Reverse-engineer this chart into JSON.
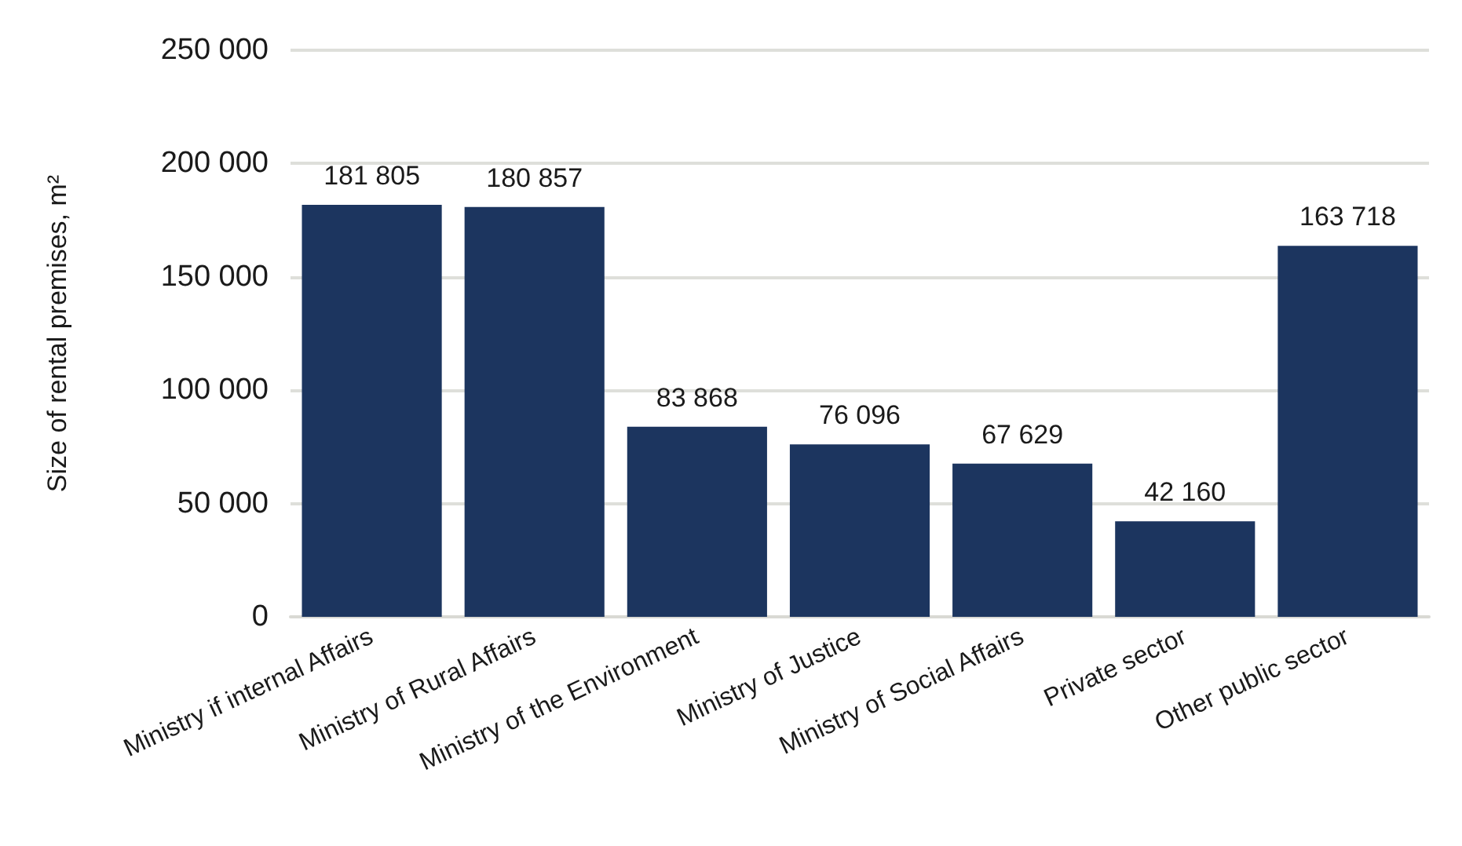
{
  "chart_data": {
    "type": "bar",
    "ylabel": "Size of rental premises, m²",
    "categories": [
      "Ministry if internal Affairs",
      "Ministry of Rural Affairs",
      "Ministry of the Environment",
      "Ministry of Justice",
      "Ministry of Social Affairs",
      "Private sector",
      "Other public sector"
    ],
    "values": [
      181805,
      180857,
      83868,
      76096,
      67629,
      42160,
      163718
    ],
    "color": "#1c355f",
    "ylim": [
      0,
      250000
    ],
    "yticks": [
      {
        "value": 0,
        "label": "0"
      },
      {
        "value": 50000,
        "label": "50 000"
      },
      {
        "value": 100000,
        "label": "100 000"
      },
      {
        "value": 150000,
        "label": "150 000"
      },
      {
        "value": 200000,
        "label": "200 000"
      },
      {
        "value": 250000,
        "label": "250 000"
      }
    ],
    "grid": "y",
    "data_labels": true
  }
}
